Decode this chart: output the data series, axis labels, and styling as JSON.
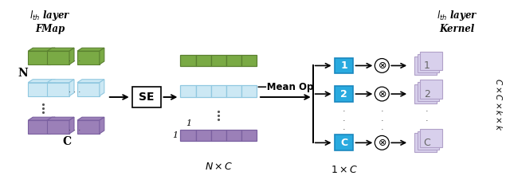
{
  "fig_width": 6.4,
  "fig_height": 2.45,
  "dpi": 100,
  "bg_color": "#ffffff",
  "green_face": "#7aaa45",
  "green_edge": "#5a8030",
  "blue_face": "#cce8f4",
  "blue_edge": "#90c8e0",
  "purple_face": "#9b80b8",
  "purple_edge": "#7a60a0",
  "cyan_fill": "#29aadf",
  "kernel_fill": "#d8d0ec",
  "kernel_edge": "#b0a0c8",
  "title_left": "$l_{th}$ layer\nFMap",
  "title_right": "$l_{th}$ layer\nKernel",
  "label_N": "N",
  "label_C": "C",
  "label_NxC": "$N \\times C$",
  "label_1xC": "$1 \\times C$",
  "label_SE": "SE",
  "label_Mean": "Mean Op",
  "label_1": "1",
  "box_labels": [
    "1",
    "2",
    "C"
  ],
  "label_CxCxkxk": "$C\\times C\\times k\\times k$"
}
